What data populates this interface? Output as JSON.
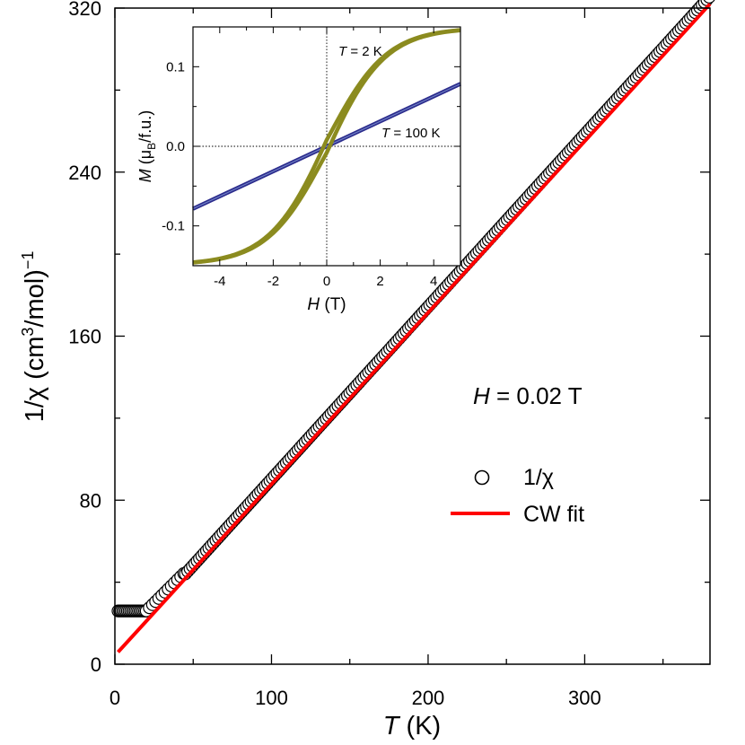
{
  "chart_data": [
    {
      "type": "scatter",
      "xlabel_italic": "T",
      "xlabel_unit": "(K)",
      "ylabel_prefix": "1/χ (cm",
      "ylabel_sup": "3",
      "ylabel_mid": "/mol)",
      "ylabel_exp": "−1",
      "xlim": [
        0,
        380
      ],
      "ylim": [
        0,
        320
      ],
      "xticks": [
        0,
        100,
        200,
        300
      ],
      "yticks": [
        0,
        80,
        160,
        240,
        320
      ],
      "annotation": {
        "italic": "H",
        "text": " = 0.02 T"
      },
      "legend": {
        "position": "center-right",
        "entries": [
          {
            "label": "1/χ",
            "marker": "open-circle"
          },
          {
            "label": "CW fit",
            "marker": "line",
            "color": "#ff0000"
          }
        ]
      },
      "series": [
        {
          "name": "1/χ",
          "marker": "open-circle",
          "color": "#000000",
          "low_t_plateau": {
            "x": [
              2,
              20
            ],
            "y": 26
          },
          "knee": {
            "x": [
              20,
              45
            ],
            "y": [
              26,
              45
            ]
          },
          "linear": {
            "x": [
              45,
              380
            ],
            "slope": 0.8409,
            "intercept": 6.2
          }
        },
        {
          "name": "CW fit",
          "color": "#ff0000",
          "x": [
            2,
            380
          ],
          "y": [
            5.9,
            322
          ]
        }
      ]
    },
    {
      "type": "line",
      "xlabel_italic": "H",
      "xlabel_unit": "(T)",
      "ylabel_italic": "M",
      "ylabel_a": " (μ",
      "ylabel_sub": "B",
      "ylabel_b": "/f.u.)",
      "xlim": [
        -5,
        5
      ],
      "ylim": [
        -0.15,
        0.15
      ],
      "xticks": [
        -4,
        -2,
        0,
        2,
        4
      ],
      "yticks": [
        -0.1,
        0.0,
        0.1
      ],
      "ytick_labels": [
        "-0.1",
        "0.0",
        "0.1"
      ],
      "grid": "dotted zero lines",
      "series": [
        {
          "name": "T = 2 K",
          "label_italic": "T",
          "label_text": " = 2 K",
          "color": "#8b8b1f",
          "saturation": 0.149,
          "field_scale": 2.2,
          "hysteresis": 0.008
        },
        {
          "name": "T = 100 K",
          "label_italic": "T",
          "label_text": " = 100 K",
          "color": "#2b2b8c",
          "slope": 0.0157
        }
      ]
    }
  ]
}
